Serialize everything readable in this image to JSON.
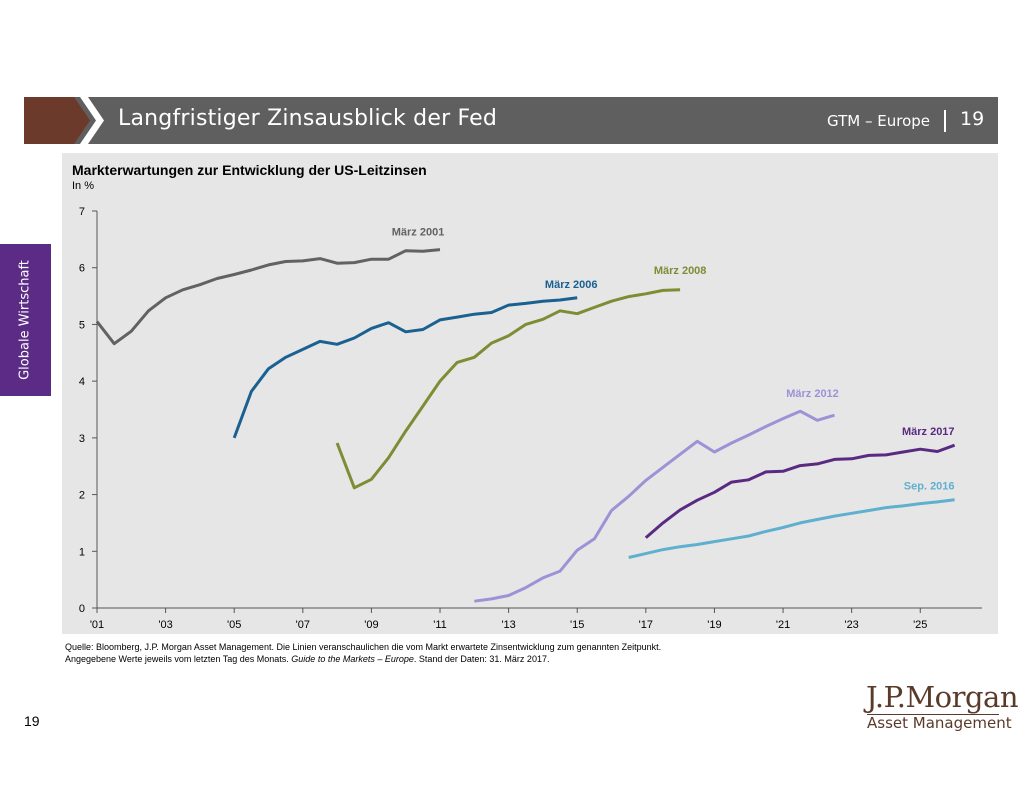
{
  "header": {
    "title": "Langfristiger Zinsausblick der Fed",
    "gtm_label": "GTM – Europe",
    "page_number": "19",
    "colors": {
      "bar": "#5f5f5f",
      "accent": "#6b3a2a"
    }
  },
  "side_tab": {
    "label": "Globale Wirtschaft",
    "color": "#5b2b86"
  },
  "footer": {
    "source_line1": "Quelle: Bloomberg, J.P. Morgan Asset Management. Die Linien veranschaulichen die vom Markt erwartete Zinsentwicklung zum genannten Zeitpunkt.",
    "source_line2_pre": "Angegebene Werte jeweils vom letzten Tag des Monats. ",
    "source_line2_italic": "Guide to the Markets – Europe",
    "source_line2_post": ". Stand der Daten: 31. März 2017.",
    "page_number": "19"
  },
  "logo": {
    "main": "J.P.Morgan",
    "sub": "Asset Management"
  },
  "chart_data": {
    "type": "line",
    "title": "Markterwartungen zur Entwicklung der US-Leitzinsen",
    "ylabel": "In %",
    "xlabel": "",
    "xlim": [
      2001,
      2026.8
    ],
    "ylim": [
      0,
      7
    ],
    "x_ticks": [
      2001,
      2003,
      2005,
      2007,
      2009,
      2011,
      2013,
      2015,
      2017,
      2019,
      2021,
      2023,
      2025
    ],
    "x_tick_labels": [
      "'01",
      "'03",
      "'05",
      "'07",
      "'09",
      "'11",
      "'13",
      "'15",
      "'17",
      "'19",
      "'21",
      "'23",
      "'25"
    ],
    "y_ticks": [
      0,
      1,
      2,
      3,
      4,
      5,
      6,
      7
    ],
    "y_tick_labels": [
      "0",
      "1",
      "2",
      "3",
      "4",
      "5",
      "6",
      "7"
    ],
    "grid": false,
    "legend": "inline labels",
    "series": [
      {
        "name": "März 2001",
        "color": "#626262",
        "points": [
          [
            2001.0,
            5.05
          ],
          [
            2001.5,
            4.66
          ],
          [
            2002.0,
            4.88
          ],
          [
            2002.5,
            5.24
          ],
          [
            2003.0,
            5.47
          ],
          [
            2003.5,
            5.61
          ],
          [
            2004.0,
            5.7
          ],
          [
            2004.5,
            5.81
          ],
          [
            2005.0,
            5.88
          ],
          [
            2005.5,
            5.96
          ],
          [
            2006.0,
            6.05
          ],
          [
            2006.5,
            6.11
          ],
          [
            2007.0,
            6.12
          ],
          [
            2007.5,
            6.16
          ],
          [
            2008.0,
            6.08
          ],
          [
            2008.5,
            6.09
          ],
          [
            2009.0,
            6.15
          ],
          [
            2009.5,
            6.15
          ],
          [
            2010.0,
            6.3
          ],
          [
            2010.5,
            6.29
          ],
          [
            2011.0,
            6.32
          ]
        ]
      },
      {
        "name": "März 2006",
        "color": "#1a6090",
        "points": [
          [
            2005.0,
            3.0
          ],
          [
            2005.5,
            3.82
          ],
          [
            2006.0,
            4.22
          ],
          [
            2006.5,
            4.42
          ],
          [
            2007.0,
            4.56
          ],
          [
            2007.5,
            4.7
          ],
          [
            2008.0,
            4.65
          ],
          [
            2008.5,
            4.76
          ],
          [
            2009.0,
            4.93
          ],
          [
            2009.5,
            5.03
          ],
          [
            2010.0,
            4.87
          ],
          [
            2010.5,
            4.91
          ],
          [
            2011.0,
            5.08
          ],
          [
            2011.5,
            5.13
          ],
          [
            2012.0,
            5.18
          ],
          [
            2012.5,
            5.21
          ],
          [
            2013.0,
            5.34
          ],
          [
            2013.5,
            5.37
          ],
          [
            2014.0,
            5.41
          ],
          [
            2014.5,
            5.43
          ],
          [
            2015.0,
            5.47
          ]
        ]
      },
      {
        "name": "März 2008",
        "color": "#7e8c34",
        "points": [
          [
            2008.0,
            2.91
          ],
          [
            2008.5,
            2.12
          ],
          [
            2009.0,
            2.27
          ],
          [
            2009.5,
            2.65
          ],
          [
            2010.0,
            3.12
          ],
          [
            2010.5,
            3.56
          ],
          [
            2011.0,
            4.0
          ],
          [
            2011.5,
            4.33
          ],
          [
            2012.0,
            4.42
          ],
          [
            2012.5,
            4.67
          ],
          [
            2013.0,
            4.8
          ],
          [
            2013.5,
            5.0
          ],
          [
            2014.0,
            5.09
          ],
          [
            2014.5,
            5.24
          ],
          [
            2015.0,
            5.19
          ],
          [
            2015.5,
            5.3
          ],
          [
            2016.0,
            5.41
          ],
          [
            2016.5,
            5.49
          ],
          [
            2017.0,
            5.54
          ],
          [
            2017.5,
            5.6
          ],
          [
            2018.0,
            5.61
          ]
        ]
      },
      {
        "name": "März 2012",
        "color": "#9b93d6",
        "points": [
          [
            2012.0,
            0.12
          ],
          [
            2012.5,
            0.16
          ],
          [
            2013.0,
            0.22
          ],
          [
            2013.5,
            0.36
          ],
          [
            2014.0,
            0.53
          ],
          [
            2014.5,
            0.65
          ],
          [
            2015.0,
            1.02
          ],
          [
            2015.5,
            1.22
          ],
          [
            2016.0,
            1.72
          ],
          [
            2016.5,
            1.97
          ],
          [
            2017.0,
            2.25
          ],
          [
            2017.5,
            2.48
          ],
          [
            2018.0,
            2.71
          ],
          [
            2018.5,
            2.94
          ],
          [
            2019.0,
            2.75
          ],
          [
            2019.5,
            2.91
          ],
          [
            2020.0,
            3.05
          ],
          [
            2020.5,
            3.2
          ],
          [
            2021.0,
            3.34
          ],
          [
            2021.5,
            3.47
          ],
          [
            2022.0,
            3.31
          ],
          [
            2022.5,
            3.4
          ]
        ]
      },
      {
        "name": "März 2017",
        "color": "#5a2a82",
        "points": [
          [
            2017.0,
            1.24
          ],
          [
            2017.5,
            1.5
          ],
          [
            2018.0,
            1.73
          ],
          [
            2018.5,
            1.9
          ],
          [
            2019.0,
            2.04
          ],
          [
            2019.5,
            2.22
          ],
          [
            2020.0,
            2.26
          ],
          [
            2020.5,
            2.4
          ],
          [
            2021.0,
            2.41
          ],
          [
            2021.5,
            2.51
          ],
          [
            2022.0,
            2.54
          ],
          [
            2022.5,
            2.62
          ],
          [
            2023.0,
            2.63
          ],
          [
            2023.5,
            2.69
          ],
          [
            2024.0,
            2.7
          ],
          [
            2024.5,
            2.75
          ],
          [
            2025.0,
            2.8
          ],
          [
            2025.5,
            2.76
          ],
          [
            2026.0,
            2.87
          ]
        ]
      },
      {
        "name": "Sep. 2016",
        "color": "#5fb0cf",
        "points": [
          [
            2016.5,
            0.89
          ],
          [
            2017.0,
            0.96
          ],
          [
            2017.5,
            1.03
          ],
          [
            2018.0,
            1.08
          ],
          [
            2018.5,
            1.12
          ],
          [
            2019.0,
            1.17
          ],
          [
            2019.5,
            1.22
          ],
          [
            2020.0,
            1.27
          ],
          [
            2020.5,
            1.35
          ],
          [
            2021.0,
            1.42
          ],
          [
            2021.5,
            1.5
          ],
          [
            2022.0,
            1.56
          ],
          [
            2022.5,
            1.62
          ],
          [
            2023.0,
            1.67
          ],
          [
            2023.5,
            1.72
          ],
          [
            2024.0,
            1.77
          ],
          [
            2024.5,
            1.8
          ],
          [
            2025.0,
            1.84
          ],
          [
            2025.5,
            1.87
          ],
          [
            2026.0,
            1.91
          ]
        ]
      }
    ]
  }
}
